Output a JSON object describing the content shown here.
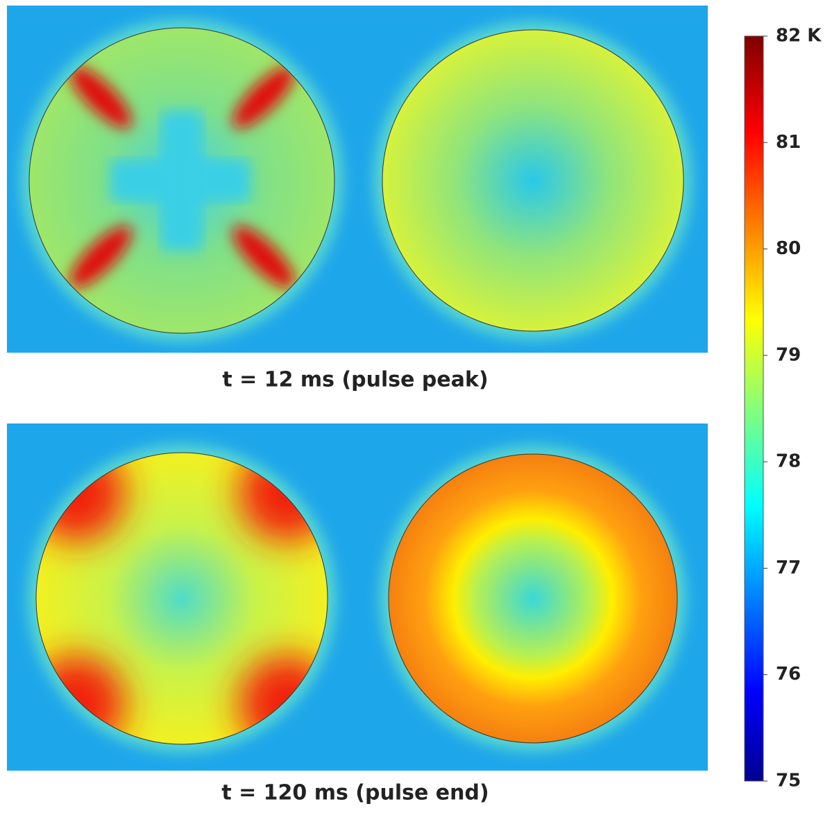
{
  "panels": [
    {
      "caption": "t = 12 ms (pulse peak)"
    },
    {
      "caption": "t = 120 ms (pulse end)"
    }
  ],
  "colorbar": {
    "range": [
      75,
      82
    ],
    "ticks": [
      75,
      76,
      77,
      78,
      79,
      80,
      81,
      {
        "value": 82,
        "label": "82 K"
      }
    ]
  }
}
